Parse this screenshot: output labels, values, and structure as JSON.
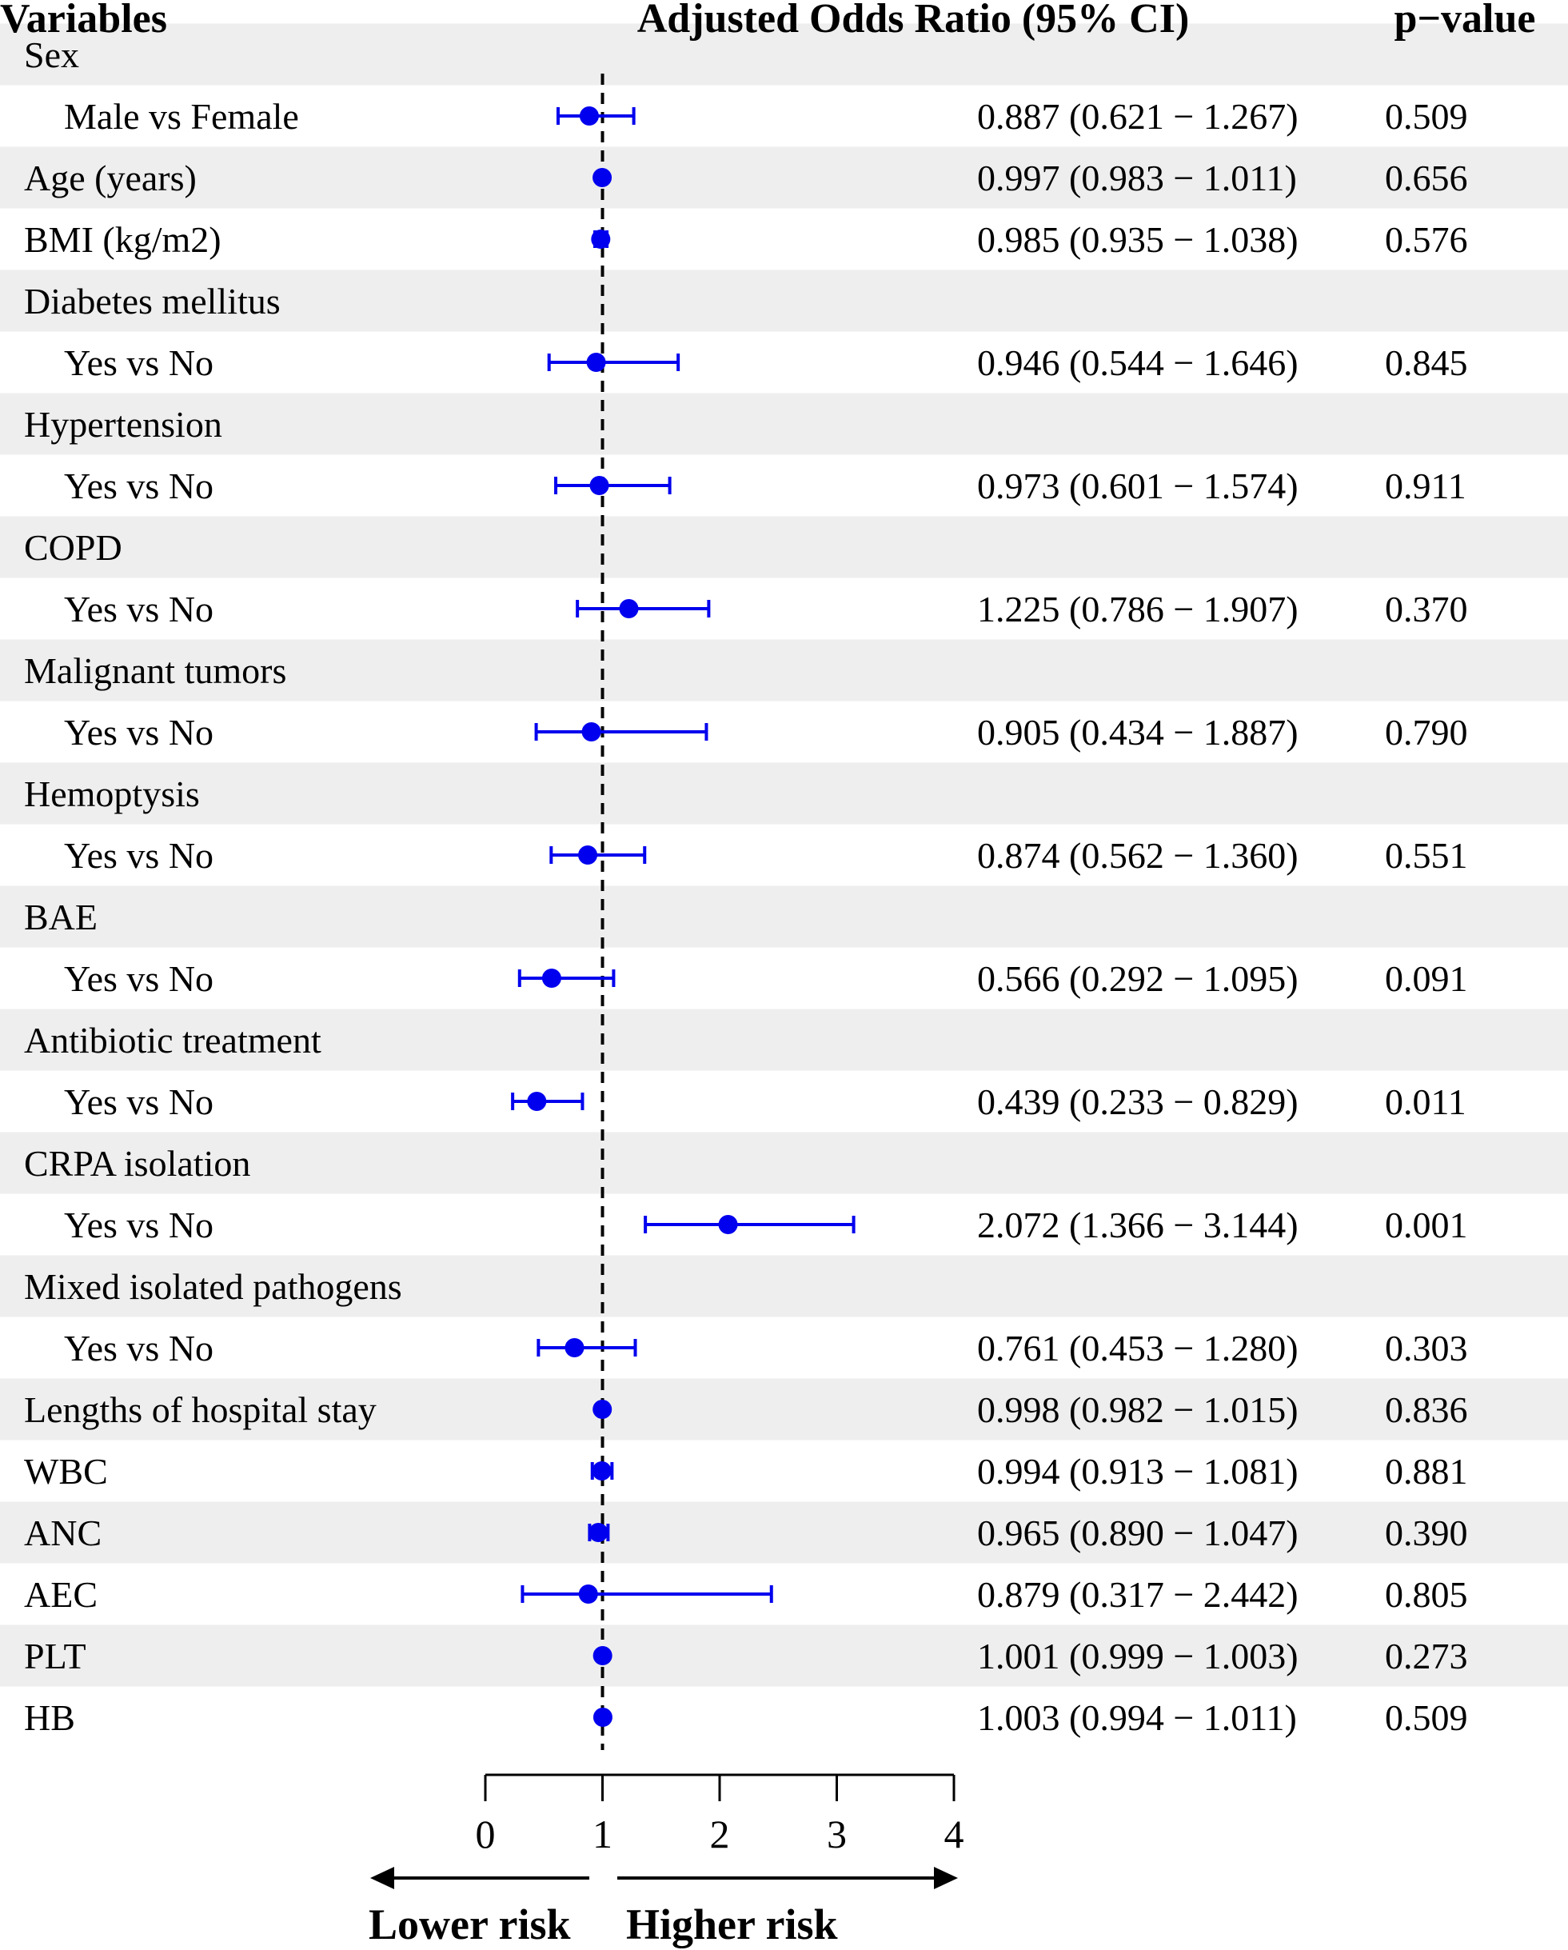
{
  "chart_data": {
    "type": "forest",
    "headers": {
      "variables": "Variables",
      "estimate": "Adjusted Odds Ratio (95% CI)",
      "pvalue": "p−value"
    },
    "rows": [
      {
        "label": "Sex",
        "indent": false,
        "stripe": true
      },
      {
        "label": "Male vs Female",
        "indent": true,
        "or": 0.887,
        "lo": 0.621,
        "hi": 1.267,
        "ci_text": "0.887 (0.621 − 1.267)",
        "p": "0.509"
      },
      {
        "label": "Age (years)",
        "indent": false,
        "stripe": true,
        "or": 0.997,
        "lo": 0.983,
        "hi": 1.011,
        "ci_text": "0.997 (0.983 − 1.011)",
        "p": "0.656"
      },
      {
        "label": "BMI (kg/m2)",
        "indent": false,
        "or": 0.985,
        "lo": 0.935,
        "hi": 1.038,
        "ci_text": "0.985 (0.935 − 1.038)",
        "p": "0.576"
      },
      {
        "label": "Diabetes mellitus",
        "indent": false,
        "stripe": true
      },
      {
        "label": "Yes vs No",
        "indent": true,
        "or": 0.946,
        "lo": 0.544,
        "hi": 1.646,
        "ci_text": "0.946 (0.544 − 1.646)",
        "p": "0.845"
      },
      {
        "label": "Hypertension",
        "indent": false,
        "stripe": true
      },
      {
        "label": "Yes vs No",
        "indent": true,
        "or": 0.973,
        "lo": 0.601,
        "hi": 1.574,
        "ci_text": "0.973 (0.601 − 1.574)",
        "p": "0.911"
      },
      {
        "label": "COPD",
        "indent": false,
        "stripe": true
      },
      {
        "label": "Yes vs No",
        "indent": true,
        "or": 1.225,
        "lo": 0.786,
        "hi": 1.907,
        "ci_text": "1.225 (0.786 − 1.907)",
        "p": "0.370"
      },
      {
        "label": "Malignant tumors",
        "indent": false,
        "stripe": true
      },
      {
        "label": "Yes vs No",
        "indent": true,
        "or": 0.905,
        "lo": 0.434,
        "hi": 1.887,
        "ci_text": "0.905 (0.434 − 1.887)",
        "p": "0.790"
      },
      {
        "label": "Hemoptysis",
        "indent": false,
        "stripe": true
      },
      {
        "label": "Yes vs No",
        "indent": true,
        "or": 0.874,
        "lo": 0.562,
        "hi": 1.36,
        "ci_text": "0.874 (0.562 − 1.360)",
        "p": "0.551"
      },
      {
        "label": "BAE",
        "indent": false,
        "stripe": true
      },
      {
        "label": "Yes vs No",
        "indent": true,
        "or": 0.566,
        "lo": 0.292,
        "hi": 1.095,
        "ci_text": "0.566 (0.292 − 1.095)",
        "p": "0.091"
      },
      {
        "label": "Antibiotic treatment",
        "indent": false,
        "stripe": true
      },
      {
        "label": "Yes vs No",
        "indent": true,
        "or": 0.439,
        "lo": 0.233,
        "hi": 0.829,
        "ci_text": "0.439 (0.233 − 0.829)",
        "p": "0.011"
      },
      {
        "label": "CRPA isolation",
        "indent": false,
        "stripe": true
      },
      {
        "label": "Yes vs No",
        "indent": true,
        "or": 2.072,
        "lo": 1.366,
        "hi": 3.144,
        "ci_text": "2.072 (1.366 − 3.144)",
        "p": "0.001"
      },
      {
        "label": "Mixed isolated pathogens",
        "indent": false,
        "stripe": true
      },
      {
        "label": "Yes vs No",
        "indent": true,
        "or": 0.761,
        "lo": 0.453,
        "hi": 1.28,
        "ci_text": "0.761 (0.453 − 1.280)",
        "p": "0.303"
      },
      {
        "label": "Lengths of hospital stay",
        "indent": false,
        "stripe": true,
        "or": 0.998,
        "lo": 0.982,
        "hi": 1.015,
        "ci_text": "0.998 (0.982 − 1.015)",
        "p": "0.836"
      },
      {
        "label": "WBC",
        "indent": false,
        "or": 0.994,
        "lo": 0.913,
        "hi": 1.081,
        "ci_text": "0.994 (0.913 − 1.081)",
        "p": "0.881"
      },
      {
        "label": "ANC",
        "indent": false,
        "stripe": true,
        "or": 0.965,
        "lo": 0.89,
        "hi": 1.047,
        "ci_text": "0.965 (0.890 − 1.047)",
        "p": "0.390"
      },
      {
        "label": "AEC",
        "indent": false,
        "or": 0.879,
        "lo": 0.317,
        "hi": 2.442,
        "ci_text": "0.879 (0.317 − 2.442)",
        "p": "0.805"
      },
      {
        "label": "PLT",
        "indent": false,
        "stripe": true,
        "or": 1.001,
        "lo": 0.999,
        "hi": 1.003,
        "ci_text": "1.001 (0.999 − 1.003)",
        "p": "0.273"
      },
      {
        "label": "HB",
        "indent": false,
        "or": 1.003,
        "lo": 0.994,
        "hi": 1.011,
        "ci_text": "1.003 (0.994 − 1.011)",
        "p": "0.509"
      }
    ],
    "xaxis": {
      "min": 0,
      "max": 4,
      "ticks": [
        "0",
        "1",
        "2",
        "3",
        "4"
      ],
      "reference": 1
    },
    "risk_labels": {
      "lower": "Lower risk",
      "higher": "Higher risk"
    },
    "colors": {
      "point": "#0000ee",
      "stripe": "#eeeeee",
      "reference": "#000000"
    }
  }
}
